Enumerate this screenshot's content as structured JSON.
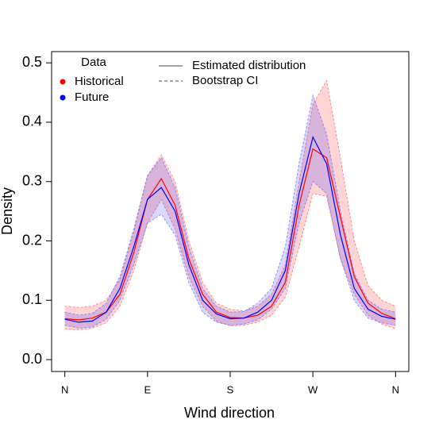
{
  "chart_data": {
    "type": "line",
    "x_label": "Wind direction",
    "y_label": "Density",
    "x": [
      0,
      15,
      30,
      45,
      60,
      75,
      90,
      105,
      120,
      135,
      150,
      165,
      180,
      195,
      210,
      225,
      240,
      255,
      270,
      285,
      300,
      315,
      330,
      345,
      360
    ],
    "series": [
      {
        "name": "Historical",
        "color": "#ff0000",
        "values": [
          0.069,
          0.067,
          0.07,
          0.08,
          0.11,
          0.18,
          0.27,
          0.305,
          0.26,
          0.17,
          0.11,
          0.08,
          0.071,
          0.07,
          0.075,
          0.09,
          0.13,
          0.26,
          0.355,
          0.34,
          0.24,
          0.14,
          0.095,
          0.078,
          0.069
        ],
        "upper": [
          0.09,
          0.088,
          0.09,
          0.1,
          0.135,
          0.215,
          0.31,
          0.345,
          0.3,
          0.2,
          0.13,
          0.095,
          0.085,
          0.082,
          0.09,
          0.11,
          0.16,
          0.3,
          0.43,
          0.47,
          0.34,
          0.2,
          0.125,
          0.1,
          0.09
        ],
        "lower": [
          0.052,
          0.05,
          0.053,
          0.062,
          0.09,
          0.15,
          0.23,
          0.27,
          0.22,
          0.14,
          0.09,
          0.065,
          0.057,
          0.058,
          0.063,
          0.075,
          0.105,
          0.19,
          0.28,
          0.275,
          0.17,
          0.11,
          0.075,
          0.06,
          0.052
        ]
      },
      {
        "name": "Future",
        "color": "#0000ff",
        "values": [
          0.068,
          0.063,
          0.065,
          0.08,
          0.12,
          0.19,
          0.27,
          0.29,
          0.25,
          0.16,
          0.1,
          0.077,
          0.069,
          0.07,
          0.08,
          0.1,
          0.15,
          0.28,
          0.375,
          0.33,
          0.21,
          0.12,
          0.085,
          0.073,
          0.068
        ],
        "upper": [
          0.08,
          0.075,
          0.078,
          0.095,
          0.14,
          0.22,
          0.31,
          0.34,
          0.29,
          0.19,
          0.12,
          0.09,
          0.08,
          0.081,
          0.095,
          0.12,
          0.19,
          0.33,
          0.445,
          0.38,
          0.25,
          0.145,
          0.1,
          0.085,
          0.08
        ],
        "lower": [
          0.058,
          0.053,
          0.055,
          0.068,
          0.1,
          0.16,
          0.23,
          0.245,
          0.21,
          0.13,
          0.08,
          0.063,
          0.058,
          0.06,
          0.067,
          0.085,
          0.12,
          0.23,
          0.3,
          0.28,
          0.17,
          0.1,
          0.07,
          0.062,
          0.058
        ]
      }
    ],
    "xlim": [
      -14.4,
      374.4
    ],
    "xticks": [
      {
        "value": 0,
        "label": "N"
      },
      {
        "value": 90,
        "label": "E"
      },
      {
        "value": 180,
        "label": "S"
      },
      {
        "value": 270,
        "label": "W"
      },
      {
        "value": 360,
        "label": "N"
      }
    ],
    "ylim": [
      -0.02,
      0.519
    ],
    "yticks": [
      {
        "value": 0,
        "label": "0.0"
      },
      0.1,
      0.2,
      0.3,
      0.4,
      0.5
    ],
    "legend_title": "Data",
    "line_legend": [
      "Estimated distribution",
      "Bootstrap CI"
    ]
  }
}
